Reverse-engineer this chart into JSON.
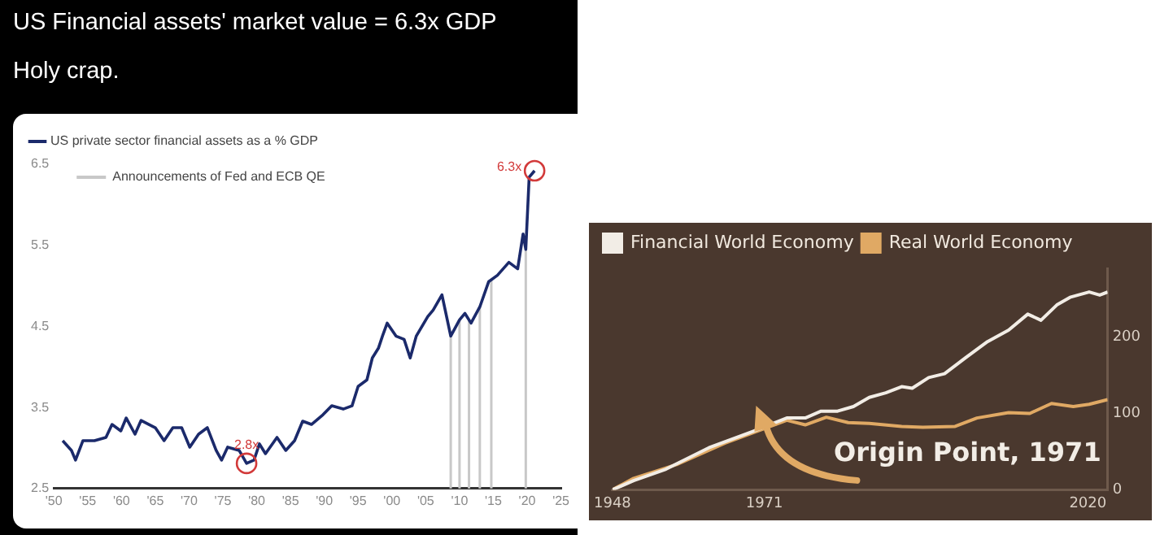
{
  "chart_data": [
    {
      "type": "line",
      "title": "US Financial assets' market value = 6.3x GDP",
      "subtitle": "Holy crap.",
      "xlim": [
        1950,
        2025
      ],
      "ylim": [
        2.5,
        6.5
      ],
      "xticks": [
        {
          "value": 1950,
          "label": "'50"
        },
        {
          "value": 1955,
          "label": "'55"
        },
        {
          "value": 1960,
          "label": "'60"
        },
        {
          "value": 1965,
          "label": "'65"
        },
        {
          "value": 1970,
          "label": "'70"
        },
        {
          "value": 1975,
          "label": "'75"
        },
        {
          "value": 1980,
          "label": "'80"
        },
        {
          "value": 1985,
          "label": "'85"
        },
        {
          "value": 1990,
          "label": "'90"
        },
        {
          "value": 1995,
          "label": "'95"
        },
        {
          "value": 2000,
          "label": "'00"
        },
        {
          "value": 2005,
          "label": "'05"
        },
        {
          "value": 2010,
          "label": "'10"
        },
        {
          "value": 2015,
          "label": "'15"
        },
        {
          "value": 2020,
          "label": "'20"
        },
        {
          "value": 2025,
          "label": "'25"
        }
      ],
      "yticks": [
        2.5,
        3.5,
        4.5,
        5.5,
        6.5
      ],
      "legend": "top left",
      "marker": "none",
      "grid": false,
      "series": [
        {
          "name": "US private sector financial assets as a % GDP",
          "color": "#1b2a6b",
          "x": [
            1951.3,
            1952.6,
            1953.2,
            1954.3,
            1956,
            1957.7,
            1958.6,
            1959.9,
            1960.7,
            1962,
            1962.9,
            1965,
            1966.3,
            1967.6,
            1968.9,
            1970.1,
            1971.4,
            1972.7,
            1974,
            1974.8,
            1975.7,
            1977.4,
            1978.5,
            1979.6,
            1980.4,
            1981.3,
            1983,
            1984.3,
            1985.6,
            1986.8,
            1988.1,
            1989.8,
            1991.1,
            1992.8,
            1994.1,
            1995,
            1996.3,
            1997.1,
            1998,
            1998.6,
            1999.3,
            2000.6,
            2001.8,
            2002.7,
            2003.6,
            2005.3,
            2006.1,
            2007.4,
            2008.7,
            2010,
            2010.8,
            2011.7,
            2013,
            2014.3,
            2015.6,
            2017.3,
            2018.6,
            2019.4,
            2019.8,
            2020.3,
            2021.1
          ],
          "values": [
            3.09,
            2.97,
            2.85,
            3.09,
            3.09,
            3.13,
            3.29,
            3.21,
            3.37,
            3.17,
            3.34,
            3.25,
            3.09,
            3.25,
            3.25,
            3.01,
            3.17,
            3.25,
            2.97,
            2.85,
            3.01,
            2.97,
            2.81,
            2.85,
            3.05,
            2.93,
            3.13,
            2.97,
            3.09,
            3.33,
            3.29,
            3.41,
            3.52,
            3.48,
            3.52,
            3.76,
            3.84,
            4.11,
            4.23,
            4.38,
            4.54,
            4.38,
            4.34,
            4.11,
            4.38,
            4.62,
            4.7,
            4.89,
            4.38,
            4.58,
            4.66,
            4.54,
            4.74,
            5.05,
            5.13,
            5.29,
            5.21,
            5.64,
            5.45,
            6.34,
            6.42
          ]
        }
      ],
      "ref_lines": [
        {
          "axis": "x",
          "value": 2008.7,
          "label": "Announcements of Fed and ECB QE",
          "color": "#c8c8c8"
        },
        {
          "axis": "x",
          "value": 2010,
          "color": "#c8c8c8"
        },
        {
          "axis": "x",
          "value": 2011.4,
          "color": "#c8c8c8"
        },
        {
          "axis": "x",
          "value": 2013,
          "color": "#c8c8c8"
        },
        {
          "axis": "x",
          "value": 2014.7,
          "color": "#c8c8c8"
        },
        {
          "axis": "x",
          "value": 2019.8,
          "color": "#c8c8c8"
        }
      ],
      "annotations": [
        {
          "text": "2.8x",
          "x": 1978.5,
          "y": 2.81
        },
        {
          "text": "6.3x",
          "x": 2021.1,
          "y": 6.42
        }
      ]
    },
    {
      "type": "line",
      "xlim": [
        1948,
        2023
      ],
      "ylim": [
        0,
        290
      ],
      "xticks": [
        1948,
        1971,
        2020
      ],
      "yticks": [
        0,
        100,
        200
      ],
      "legend": "top left",
      "marker": "none",
      "grid": false,
      "series": [
        {
          "name": "Financial World Economy",
          "color": "#f2ede6",
          "x": [
            1948,
            1951.2,
            1956.1,
            1962.6,
            1969.1,
            1974.4,
            1977.2,
            1979.6,
            1982.1,
            1984.5,
            1986.9,
            1989.4,
            1991.8,
            1993.4,
            1995.9,
            1998.3,
            2001.5,
            2004.8,
            2008,
            2010.9,
            2012.9,
            2015.3,
            2017.3,
            2020.2,
            2021.8,
            2023
          ],
          "values": [
            0,
            12,
            27,
            55,
            76,
            94,
            94,
            103,
            103,
            109,
            121,
            127,
            135,
            133,
            147,
            152,
            173,
            194,
            209,
            230,
            222,
            242,
            252,
            259,
            255,
            259
          ]
        },
        {
          "name": "Real World Economy",
          "color": "#e0a964",
          "x": [
            1948,
            1951.2,
            1957.7,
            1965,
            1974.4,
            1977.2,
            1980.4,
            1983.7,
            1986.9,
            1991.8,
            1995,
            1999.9,
            2003.2,
            2008,
            2011.2,
            2014.5,
            2017.8,
            2020.2,
            2023
          ],
          "values": [
            0,
            15,
            33,
            61,
            91,
            85,
            95,
            88,
            87,
            83,
            82,
            83,
            94,
            101,
            100,
            113,
            109,
            112,
            118
          ]
        }
      ],
      "annotations": [
        "Origin Point, 1971"
      ]
    }
  ]
}
